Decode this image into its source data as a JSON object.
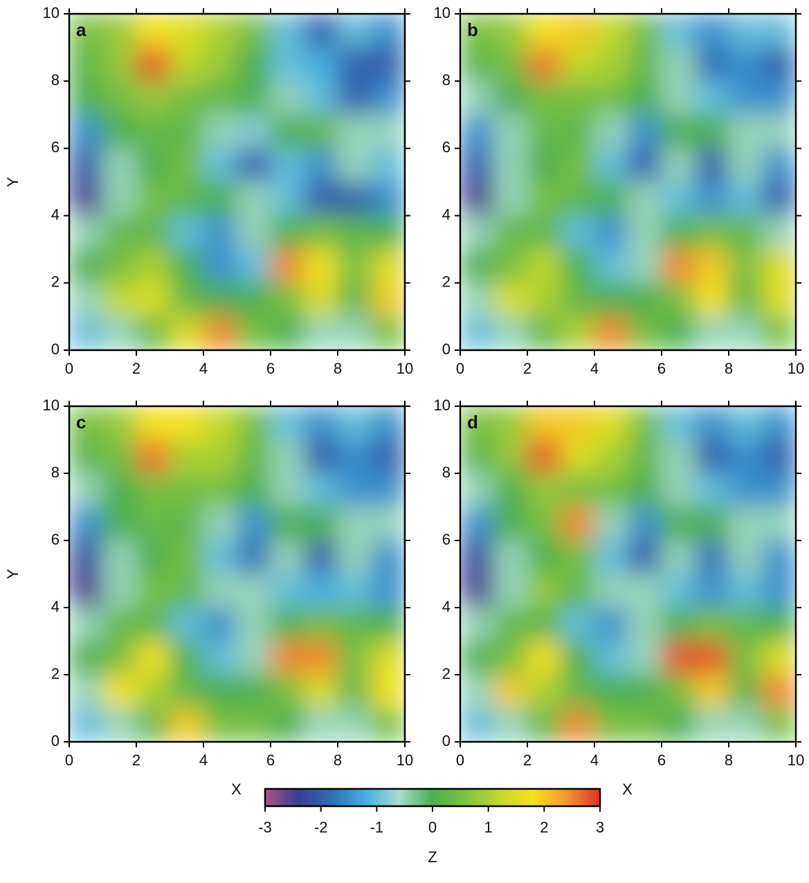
{
  "chart_data": [
    {
      "type": "heatmap",
      "label": "a",
      "ylabel": "Y",
      "xlim": [
        0,
        10
      ],
      "ylim": [
        0,
        10
      ],
      "xticks": [
        0,
        2,
        4,
        6,
        8,
        10
      ],
      "yticks": [
        0,
        2,
        4,
        6,
        8,
        10
      ],
      "z": [
        [
          0.5,
          0.8,
          1.8,
          1.5,
          1.0,
          0.5,
          -1,
          -2,
          -1,
          -1.5
        ],
        [
          0.2,
          0.8,
          2.8,
          1.2,
          0.8,
          0,
          -1,
          -1.2,
          -2,
          -2
        ],
        [
          0,
          0.5,
          0.8,
          0.5,
          0.3,
          0,
          -0.5,
          -1,
          -2,
          -1.5
        ],
        [
          -1.5,
          0,
          0.3,
          0.2,
          -0.5,
          -0.8,
          0,
          0.3,
          -0.5,
          -0.5
        ],
        [
          -2,
          -0.5,
          0,
          0.5,
          -1,
          -2,
          -1,
          -1.5,
          -0.5,
          -1
        ],
        [
          -2.5,
          -0.5,
          0.5,
          0.2,
          0,
          -0.5,
          -1,
          -2,
          -2,
          -1.5
        ],
        [
          -0.5,
          0.3,
          0.2,
          -1,
          -1.5,
          -0.5,
          0,
          0.5,
          0.2,
          0
        ],
        [
          0,
          0.5,
          1,
          0,
          -1.5,
          -1,
          2.5,
          1.8,
          0.5,
          1.5
        ],
        [
          -0.5,
          1.2,
          1.5,
          0.3,
          0,
          0,
          0.5,
          1.5,
          0.2,
          2
        ],
        [
          -1,
          -0.5,
          0.3,
          1.5,
          2.5,
          0.5,
          0,
          -0.5,
          -0.5,
          0.5
        ]
      ]
    },
    {
      "type": "heatmap",
      "label": "b",
      "xlim": [
        0,
        10
      ],
      "ylim": [
        0,
        10
      ],
      "xticks": [
        0,
        2,
        4,
        6,
        8,
        10
      ],
      "yticks": [
        0,
        2,
        4,
        6,
        8,
        10
      ],
      "z": [
        [
          0.5,
          0.8,
          1.8,
          2.0,
          1.2,
          0.5,
          -1,
          -1.5,
          -1,
          -1.0
        ],
        [
          0.2,
          0.5,
          2.6,
          1.2,
          1.0,
          0.3,
          -0.5,
          -1.8,
          -1.5,
          -2
        ],
        [
          -0.5,
          0,
          0.5,
          0.5,
          0.5,
          0,
          -0.5,
          -1,
          -1.5,
          -1.5
        ],
        [
          -1.5,
          -0.5,
          0.3,
          0.2,
          -0.5,
          -1.5,
          0,
          0,
          -0.5,
          -0.5
        ],
        [
          -2,
          -0.5,
          0,
          0.5,
          -1,
          -2,
          -0.5,
          -2,
          -0.5,
          -1.5
        ],
        [
          -2.5,
          -0.5,
          0.5,
          0.2,
          0,
          -0.5,
          -1,
          -1.5,
          -1,
          -2
        ],
        [
          -0.5,
          0.3,
          0.2,
          -1,
          -1.5,
          -0.5,
          0,
          0.5,
          0.2,
          -0.5
        ],
        [
          0,
          0.5,
          1.2,
          0,
          -1,
          -0.5,
          2.5,
          2,
          0.5,
          1.5
        ],
        [
          -0.5,
          1.5,
          1.0,
          0.3,
          0,
          0,
          0.5,
          1.8,
          0.2,
          1.5
        ],
        [
          -1,
          -0.5,
          0.3,
          1.0,
          2.5,
          0.5,
          0,
          -0.5,
          -0.5,
          0.5
        ]
      ]
    },
    {
      "type": "heatmap",
      "label": "c",
      "xlabel": "X",
      "ylabel": "Y",
      "xlim": [
        0,
        10
      ],
      "ylim": [
        0,
        10
      ],
      "xticks": [
        0,
        2,
        4,
        6,
        8,
        10
      ],
      "yticks": [
        0,
        2,
        4,
        6,
        8,
        10
      ],
      "z": [
        [
          0.5,
          0.8,
          1.8,
          1.8,
          1.2,
          0.5,
          -1,
          -1.5,
          -1,
          -1.5
        ],
        [
          0.2,
          0.5,
          2.6,
          1.0,
          1.0,
          0.3,
          -0.5,
          -2,
          -1.5,
          -2
        ],
        [
          -0.5,
          0,
          0.5,
          0.5,
          0.5,
          0,
          -0.5,
          -1,
          -1.5,
          -1.5
        ],
        [
          -1.5,
          0,
          0.3,
          0.2,
          -0.5,
          -1.5,
          0,
          0,
          -0.5,
          -0.5
        ],
        [
          -2.2,
          -0.5,
          0,
          0.5,
          -1,
          -1.8,
          -0.5,
          -2,
          -0.5,
          -1.5
        ],
        [
          -2.5,
          -0.5,
          0.5,
          0.2,
          -0.5,
          -0.5,
          -1,
          -1.2,
          -1,
          -1.5
        ],
        [
          -0.5,
          0.3,
          0.2,
          -1,
          -1.5,
          -0.5,
          0,
          0.5,
          0.2,
          0
        ],
        [
          0,
          0.5,
          1.8,
          0,
          -1,
          -0.5,
          2.5,
          2.5,
          0.5,
          1.5
        ],
        [
          -0.5,
          1.8,
          1.0,
          0.3,
          0,
          0,
          0.5,
          1.5,
          0.2,
          1.8
        ],
        [
          -1,
          -0.5,
          0.3,
          2.0,
          0.5,
          0.5,
          0,
          -0.5,
          -0.5,
          0.5
        ]
      ]
    },
    {
      "type": "heatmap",
      "label": "d",
      "xlabel": "X",
      "xlim": [
        0,
        10
      ],
      "ylim": [
        0,
        10
      ],
      "xticks": [
        0,
        2,
        4,
        6,
        8,
        10
      ],
      "yticks": [
        0,
        2,
        4,
        6,
        8,
        10
      ],
      "z": [
        [
          0.5,
          0.8,
          2.0,
          2.0,
          1.5,
          0.5,
          -1,
          -1.5,
          -1,
          -1.5
        ],
        [
          0.2,
          0.8,
          2.8,
          1.5,
          1.0,
          0.3,
          -0.5,
          -2,
          -1.5,
          -2
        ],
        [
          -0.5,
          0,
          0.8,
          0.5,
          0.5,
          0,
          -0.5,
          -1,
          -1.5,
          -1.5
        ],
        [
          -1.5,
          0,
          0.5,
          2.5,
          -0.5,
          -1.5,
          0,
          0,
          -0.5,
          -0.5
        ],
        [
          -2.2,
          -0.5,
          0,
          0.5,
          -1,
          -2,
          -0.5,
          -1.8,
          -0.5,
          -1.5
        ],
        [
          -2.5,
          -0.5,
          0.8,
          0.2,
          -0.5,
          -0.5,
          -1,
          -1.5,
          -1,
          -1.5
        ],
        [
          -0.5,
          0.3,
          0.2,
          -1,
          -1.5,
          -0.5,
          0,
          0.5,
          0.2,
          0
        ],
        [
          0,
          0.5,
          1.8,
          0,
          -1,
          -0.5,
          2.8,
          2.8,
          0.5,
          1.5
        ],
        [
          -0.5,
          2.0,
          1.0,
          0.3,
          0,
          0,
          0.5,
          2.0,
          0.2,
          2.5
        ],
        [
          -1,
          -0.5,
          0.3,
          2.5,
          0.5,
          0.5,
          0,
          -0.5,
          -0.5,
          0.5
        ]
      ]
    },
    {
      "type": "colorbar",
      "label": "Z",
      "zlim": [
        -3,
        3
      ],
      "ticks": [
        -3,
        -2,
        -1,
        0,
        1,
        2,
        3
      ],
      "colors": [
        "#a2578f",
        "#3b3c8f",
        "#2f6fb7",
        "#45aee0",
        "#a6dccf",
        "#4caf50",
        "#7fc241",
        "#c3d82c",
        "#f4e11b",
        "#f2992f",
        "#e0302a"
      ]
    }
  ]
}
